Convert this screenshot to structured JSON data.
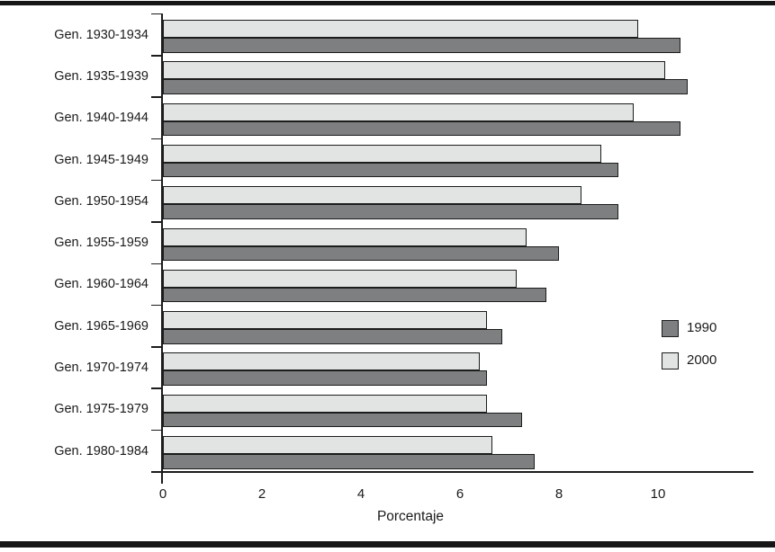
{
  "chart_data": {
    "type": "bar",
    "orientation": "horizontal",
    "title": "",
    "xlabel": "Porcentaje",
    "ylabel": "",
    "categories": [
      "Gen. 1930-1934",
      "Gen. 1935-1939",
      "Gen. 1940-1944",
      "Gen. 1945-1949",
      "Gen. 1950-1954",
      "Gen. 1955-1959",
      "Gen. 1960-1964",
      "Gen. 1965-1969",
      "Gen. 1970-1974",
      "Gen. 1975-1979",
      "Gen. 1980-1984"
    ],
    "series": [
      {
        "name": "1990",
        "color": "#7d7f80",
        "values": [
          10.45,
          10.6,
          10.45,
          9.2,
          9.2,
          8.0,
          7.75,
          6.85,
          6.55,
          7.25,
          7.5
        ]
      },
      {
        "name": "2000",
        "color": "#e2e4e4",
        "values": [
          9.6,
          10.15,
          9.5,
          8.85,
          8.45,
          7.35,
          7.15,
          6.55,
          6.4,
          6.55,
          6.65
        ]
      }
    ],
    "group_bar_order_top_to_bottom": [
      "2000",
      "1990"
    ],
    "x_ticks": [
      0,
      2,
      4,
      6,
      8,
      10
    ],
    "xlim": [
      0,
      11.9
    ],
    "grid": false,
    "legend": {
      "position": "middle-right",
      "entries": [
        {
          "label": "1990",
          "color": "#7d7f80"
        },
        {
          "label": "2000",
          "color": "#e2e4e4"
        }
      ]
    }
  },
  "colors": {
    "bar_border": "#1c1c1c",
    "axis": "#1c1c1c",
    "text": "#1a1a1a",
    "background": "#ffffff",
    "rule": "#161616"
  }
}
